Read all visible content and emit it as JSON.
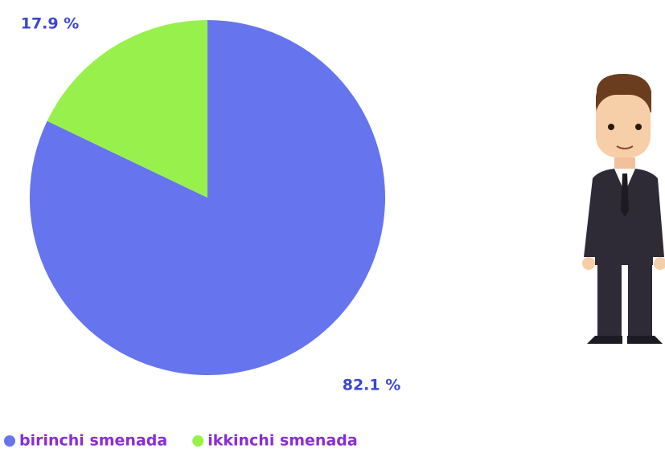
{
  "chart_data": {
    "type": "pie",
    "categories": [
      "birinchi smenada",
      "ikkinchi smenada"
    ],
    "values": [
      82.1,
      17.9
    ],
    "value_labels": [
      "82.1 %",
      "17.9 %"
    ],
    "colors": [
      "#6674ee",
      "#98f04c"
    ]
  }
}
